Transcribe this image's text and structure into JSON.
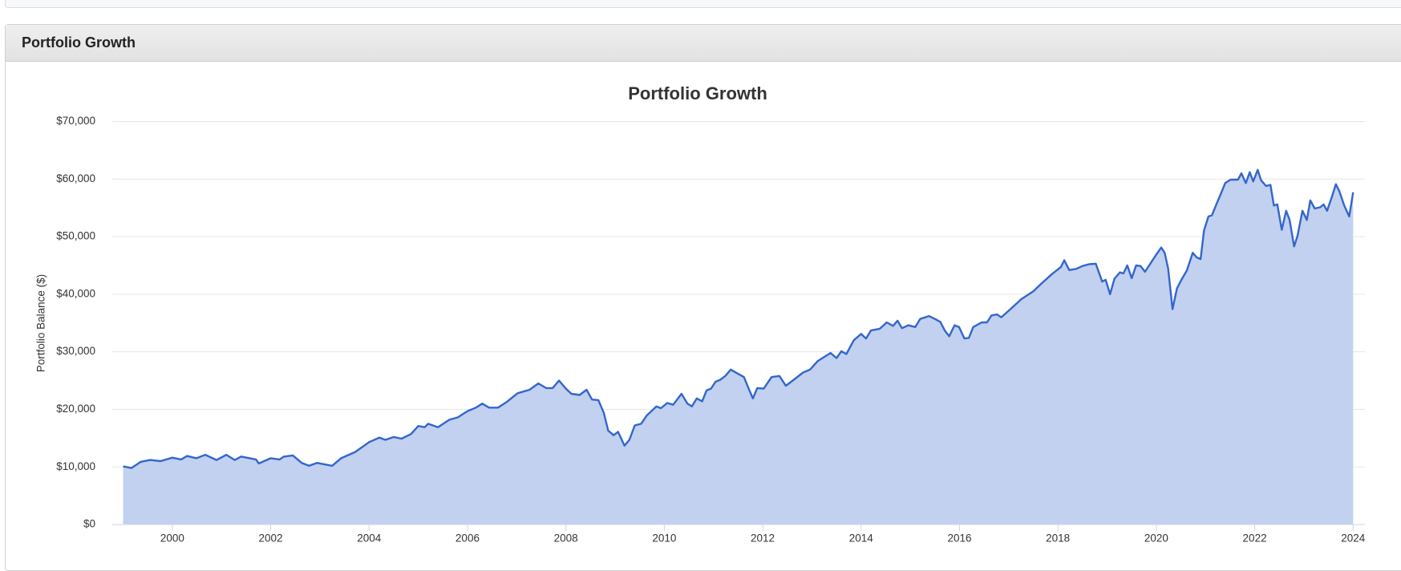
{
  "header": {
    "title": "Portfolio Growth"
  },
  "chart_data": {
    "type": "area",
    "title": "Portfolio Growth",
    "y_label": "Portfolio Balance ($)",
    "color": "#3366cc",
    "fill": "#c2d1ef",
    "grid": true,
    "xlim": [
      1998.78,
      2024.24
    ],
    "xticks": [
      2000,
      2002,
      2004,
      2006,
      2008,
      2010,
      2012,
      2014,
      2016,
      2018,
      2020,
      2022,
      2024
    ],
    "ylim": [
      0,
      70000
    ],
    "yticks": [
      {
        "value": 0,
        "label": "$0"
      },
      {
        "value": 10000,
        "label": "$10,000"
      },
      {
        "value": 20000,
        "label": "$20,000"
      },
      {
        "value": 30000,
        "label": "$30,000"
      },
      {
        "value": 40000,
        "label": "$40,000"
      },
      {
        "value": 50000,
        "label": "$50,000"
      },
      {
        "value": 60000,
        "label": "$60,000"
      },
      {
        "value": 70000,
        "label": "$70,000"
      }
    ],
    "x": [
      1999.0,
      1999.17,
      1999.36,
      1999.55,
      1999.76,
      2000.0,
      2000.18,
      2000.3,
      2000.49,
      2000.67,
      2000.9,
      2001.1,
      2001.27,
      2001.4,
      2001.7,
      2001.76,
      2002.0,
      2002.18,
      2002.27,
      2002.45,
      2002.63,
      2002.78,
      2002.94,
      2003.25,
      2003.43,
      2003.72,
      2004.0,
      2004.21,
      2004.33,
      2004.5,
      2004.66,
      2004.85,
      2005.0,
      2005.13,
      2005.2,
      2005.4,
      2005.63,
      2005.8,
      2006.0,
      2006.17,
      2006.3,
      2006.44,
      2006.62,
      2006.8,
      2007.02,
      2007.26,
      2007.44,
      2007.6,
      2007.73,
      2007.86,
      2007.99,
      2008.11,
      2008.28,
      2008.42,
      2008.53,
      2008.66,
      2008.77,
      2008.86,
      2008.97,
      2009.06,
      2009.19,
      2009.29,
      2009.4,
      2009.53,
      2009.64,
      2009.84,
      2009.93,
      2010.06,
      2010.18,
      2010.35,
      2010.47,
      2010.56,
      2010.66,
      2010.77,
      2010.86,
      2010.95,
      2011.04,
      2011.13,
      2011.24,
      2011.35,
      2011.62,
      2011.71,
      2011.8,
      2011.89,
      2012.02,
      2012.18,
      2012.34,
      2012.47,
      2012.58,
      2012.82,
      2012.96,
      2013.12,
      2013.38,
      2013.5,
      2013.6,
      2013.7,
      2013.85,
      2014.0,
      2014.1,
      2014.2,
      2014.38,
      2014.52,
      2014.65,
      2014.74,
      2014.83,
      2014.96,
      2015.1,
      2015.2,
      2015.38,
      2015.5,
      2015.61,
      2015.7,
      2015.79,
      2015.9,
      2015.99,
      2016.1,
      2016.19,
      2016.28,
      2016.45,
      2016.56,
      2016.65,
      2016.76,
      2016.85,
      2017.06,
      2017.25,
      2017.5,
      2017.66,
      2017.88,
      2018.06,
      2018.13,
      2018.23,
      2018.37,
      2018.5,
      2018.63,
      2018.77,
      2018.9,
      2018.97,
      2019.06,
      2019.15,
      2019.26,
      2019.33,
      2019.41,
      2019.5,
      2019.59,
      2019.68,
      2019.77,
      2020.0,
      2020.1,
      2020.17,
      2020.24,
      2020.33,
      2020.42,
      2020.51,
      2020.62,
      2020.74,
      2020.82,
      2020.9,
      2020.97,
      2021.06,
      2021.13,
      2021.22,
      2021.31,
      2021.4,
      2021.51,
      2021.66,
      2021.73,
      2021.82,
      2021.9,
      2021.97,
      2022.06,
      2022.13,
      2022.23,
      2022.32,
      2022.39,
      2022.46,
      2022.55,
      2022.64,
      2022.71,
      2022.8,
      2022.87,
      2022.97,
      2023.06,
      2023.13,
      2023.22,
      2023.33,
      2023.4,
      2023.47,
      2023.56,
      2023.65,
      2023.72,
      2023.82,
      2023.92,
      2024.0
    ],
    "values": [
      10100,
      9800,
      10900,
      11200,
      11000,
      11600,
      11300,
      11900,
      11500,
      12100,
      11200,
      12100,
      11200,
      11800,
      11300,
      10600,
      11500,
      11300,
      11800,
      12000,
      10700,
      10200,
      10700,
      10200,
      11500,
      12600,
      14300,
      15100,
      14700,
      15200,
      14900,
      15700,
      17100,
      16900,
      17500,
      16900,
      18200,
      18600,
      19700,
      20300,
      21000,
      20300,
      20300,
      21300,
      22800,
      23400,
      24500,
      23700,
      23700,
      25000,
      23700,
      22700,
      22500,
      23400,
      21700,
      21600,
      19400,
      16300,
      15500,
      16100,
      13700,
      14700,
      17200,
      17500,
      18900,
      20500,
      20200,
      21100,
      20800,
      22700,
      21000,
      20500,
      21900,
      21400,
      23300,
      23600,
      24800,
      25100,
      25800,
      26900,
      25600,
      23700,
      21900,
      23700,
      23600,
      25600,
      25800,
      24100,
      24800,
      26400,
      26900,
      28400,
      29800,
      28900,
      30100,
      29600,
      32000,
      33100,
      32300,
      33700,
      34000,
      35100,
      34500,
      35400,
      34100,
      34600,
      34300,
      35700,
      36200,
      35700,
      35200,
      33700,
      32700,
      34600,
      34300,
      32300,
      32400,
      34300,
      35100,
      35100,
      36300,
      36500,
      36000,
      37600,
      39100,
      40500,
      41800,
      43500,
      44700,
      45900,
      44200,
      44400,
      44900,
      45200,
      45300,
      42200,
      42500,
      40000,
      42700,
      43800,
      43600,
      45000,
      42800,
      45000,
      44900,
      43900,
      46900,
      48100,
      47200,
      44500,
      37400,
      41000,
      42500,
      44100,
      47200,
      46400,
      46100,
      51100,
      53500,
      53700,
      55600,
      57400,
      59300,
      59900,
      59900,
      61000,
      59300,
      61200,
      59600,
      61600,
      59800,
      58800,
      59000,
      55400,
      55600,
      51200,
      54500,
      52900,
      48300,
      50100,
      54500,
      52900,
      56300,
      54900,
      55100,
      55600,
      54500,
      56700,
      59100,
      57900,
      55400,
      53500,
      57700
    ]
  }
}
